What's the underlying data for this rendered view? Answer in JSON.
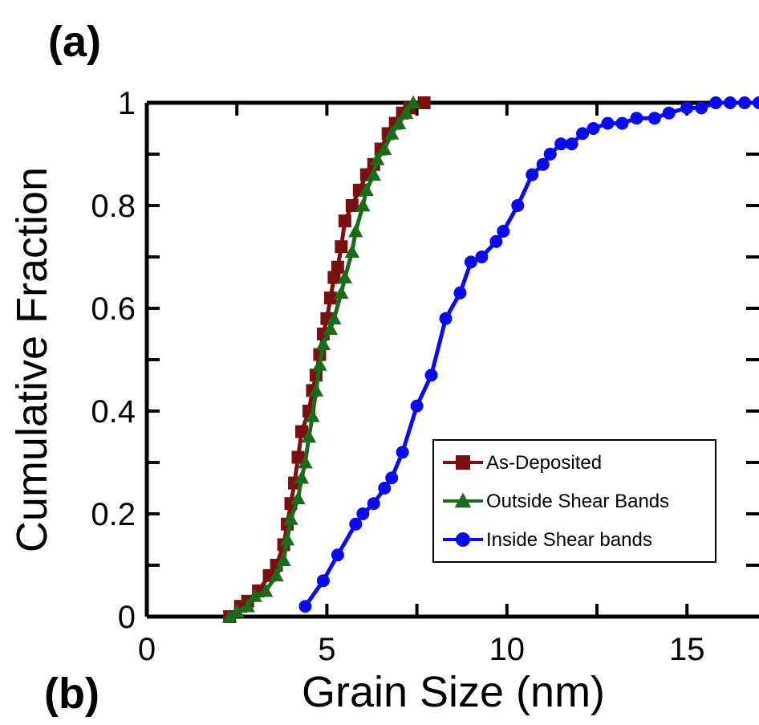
{
  "panel_labels": {
    "top": "(a)",
    "bottom": "(b)"
  },
  "chart_data": {
    "type": "line",
    "title": "",
    "xlabel": "Grain Size (nm)",
    "ylabel": "Cumulative Fraction",
    "xlim": [
      0,
      17
    ],
    "ylim": [
      0,
      1
    ],
    "xticks": [
      {
        "value": 0,
        "label": "0"
      },
      {
        "value": 5,
        "label": "5"
      },
      {
        "value": 10,
        "label": "10"
      },
      {
        "value": 15,
        "label": "15"
      }
    ],
    "yticks": [
      {
        "value": 0,
        "label": "0"
      },
      {
        "value": 0.2,
        "label": "0.2"
      },
      {
        "value": 0.4,
        "label": "0.4"
      },
      {
        "value": 0.6,
        "label": "0.6"
      },
      {
        "value": 0.8,
        "label": "0.8"
      },
      {
        "value": 1,
        "label": "1"
      }
    ],
    "legend_position": "bottom-right",
    "grid": false,
    "series": [
      {
        "name": "As-Deposited",
        "color": "#7a1010",
        "marker": "square",
        "points": [
          [
            2.3,
            0.0
          ],
          [
            2.6,
            0.02
          ],
          [
            2.8,
            0.03
          ],
          [
            3.1,
            0.05
          ],
          [
            3.4,
            0.08
          ],
          [
            3.6,
            0.1
          ],
          [
            3.8,
            0.14
          ],
          [
            3.9,
            0.18
          ],
          [
            4.0,
            0.22
          ],
          [
            4.1,
            0.26
          ],
          [
            4.2,
            0.31
          ],
          [
            4.3,
            0.36
          ],
          [
            4.5,
            0.4
          ],
          [
            4.6,
            0.44
          ],
          [
            4.7,
            0.47
          ],
          [
            4.8,
            0.51
          ],
          [
            4.9,
            0.55
          ],
          [
            5.0,
            0.58
          ],
          [
            5.1,
            0.62
          ],
          [
            5.2,
            0.66
          ],
          [
            5.3,
            0.68
          ],
          [
            5.4,
            0.72
          ],
          [
            5.5,
            0.77
          ],
          [
            5.7,
            0.8
          ],
          [
            5.9,
            0.83
          ],
          [
            6.1,
            0.86
          ],
          [
            6.3,
            0.88
          ],
          [
            6.5,
            0.91
          ],
          [
            6.7,
            0.94
          ],
          [
            6.9,
            0.96
          ],
          [
            7.1,
            0.98
          ],
          [
            7.3,
            0.99
          ],
          [
            7.7,
            1.0
          ]
        ]
      },
      {
        "name": "Outside Shear Bands",
        "color": "#1a6b1a",
        "marker": "triangle",
        "points": [
          [
            2.3,
            0.0
          ],
          [
            2.5,
            0.01
          ],
          [
            2.8,
            0.02
          ],
          [
            3.0,
            0.04
          ],
          [
            3.3,
            0.05
          ],
          [
            3.6,
            0.08
          ],
          [
            3.8,
            0.11
          ],
          [
            3.9,
            0.15
          ],
          [
            4.0,
            0.19
          ],
          [
            4.2,
            0.23
          ],
          [
            4.3,
            0.27
          ],
          [
            4.4,
            0.3
          ],
          [
            4.5,
            0.35
          ],
          [
            4.6,
            0.39
          ],
          [
            4.7,
            0.44
          ],
          [
            4.8,
            0.49
          ],
          [
            4.9,
            0.53
          ],
          [
            5.1,
            0.56
          ],
          [
            5.2,
            0.58
          ],
          [
            5.4,
            0.63
          ],
          [
            5.5,
            0.66
          ],
          [
            5.7,
            0.71
          ],
          [
            5.8,
            0.75
          ],
          [
            6.0,
            0.8
          ],
          [
            6.1,
            0.83
          ],
          [
            6.3,
            0.86
          ],
          [
            6.4,
            0.89
          ],
          [
            6.6,
            0.91
          ],
          [
            6.8,
            0.94
          ],
          [
            7.0,
            0.96
          ],
          [
            7.2,
            0.98
          ],
          [
            7.4,
            1.0
          ]
        ]
      },
      {
        "name": "Inside Shear bands",
        "color": "#0a0aee",
        "marker": "circle",
        "points": [
          [
            4.4,
            0.02
          ],
          [
            4.9,
            0.07
          ],
          [
            5.3,
            0.12
          ],
          [
            5.8,
            0.18
          ],
          [
            6.0,
            0.2
          ],
          [
            6.3,
            0.22
          ],
          [
            6.6,
            0.25
          ],
          [
            6.8,
            0.27
          ],
          [
            7.1,
            0.32
          ],
          [
            7.5,
            0.41
          ],
          [
            7.9,
            0.47
          ],
          [
            8.3,
            0.58
          ],
          [
            8.7,
            0.63
          ],
          [
            9.0,
            0.69
          ],
          [
            9.3,
            0.7
          ],
          [
            9.7,
            0.73
          ],
          [
            9.9,
            0.75
          ],
          [
            10.3,
            0.8
          ],
          [
            10.7,
            0.86
          ],
          [
            11.0,
            0.88
          ],
          [
            11.2,
            0.9
          ],
          [
            11.5,
            0.92
          ],
          [
            11.8,
            0.92
          ],
          [
            12.1,
            0.94
          ],
          [
            12.4,
            0.95
          ],
          [
            12.8,
            0.96
          ],
          [
            13.2,
            0.96
          ],
          [
            13.6,
            0.97
          ],
          [
            14.1,
            0.97
          ],
          [
            14.5,
            0.98
          ],
          [
            15.0,
            0.99
          ],
          [
            15.4,
            0.99
          ],
          [
            15.8,
            1.0
          ],
          [
            16.2,
            1.0
          ],
          [
            16.6,
            1.0
          ],
          [
            17.0,
            1.0
          ]
        ]
      }
    ]
  }
}
